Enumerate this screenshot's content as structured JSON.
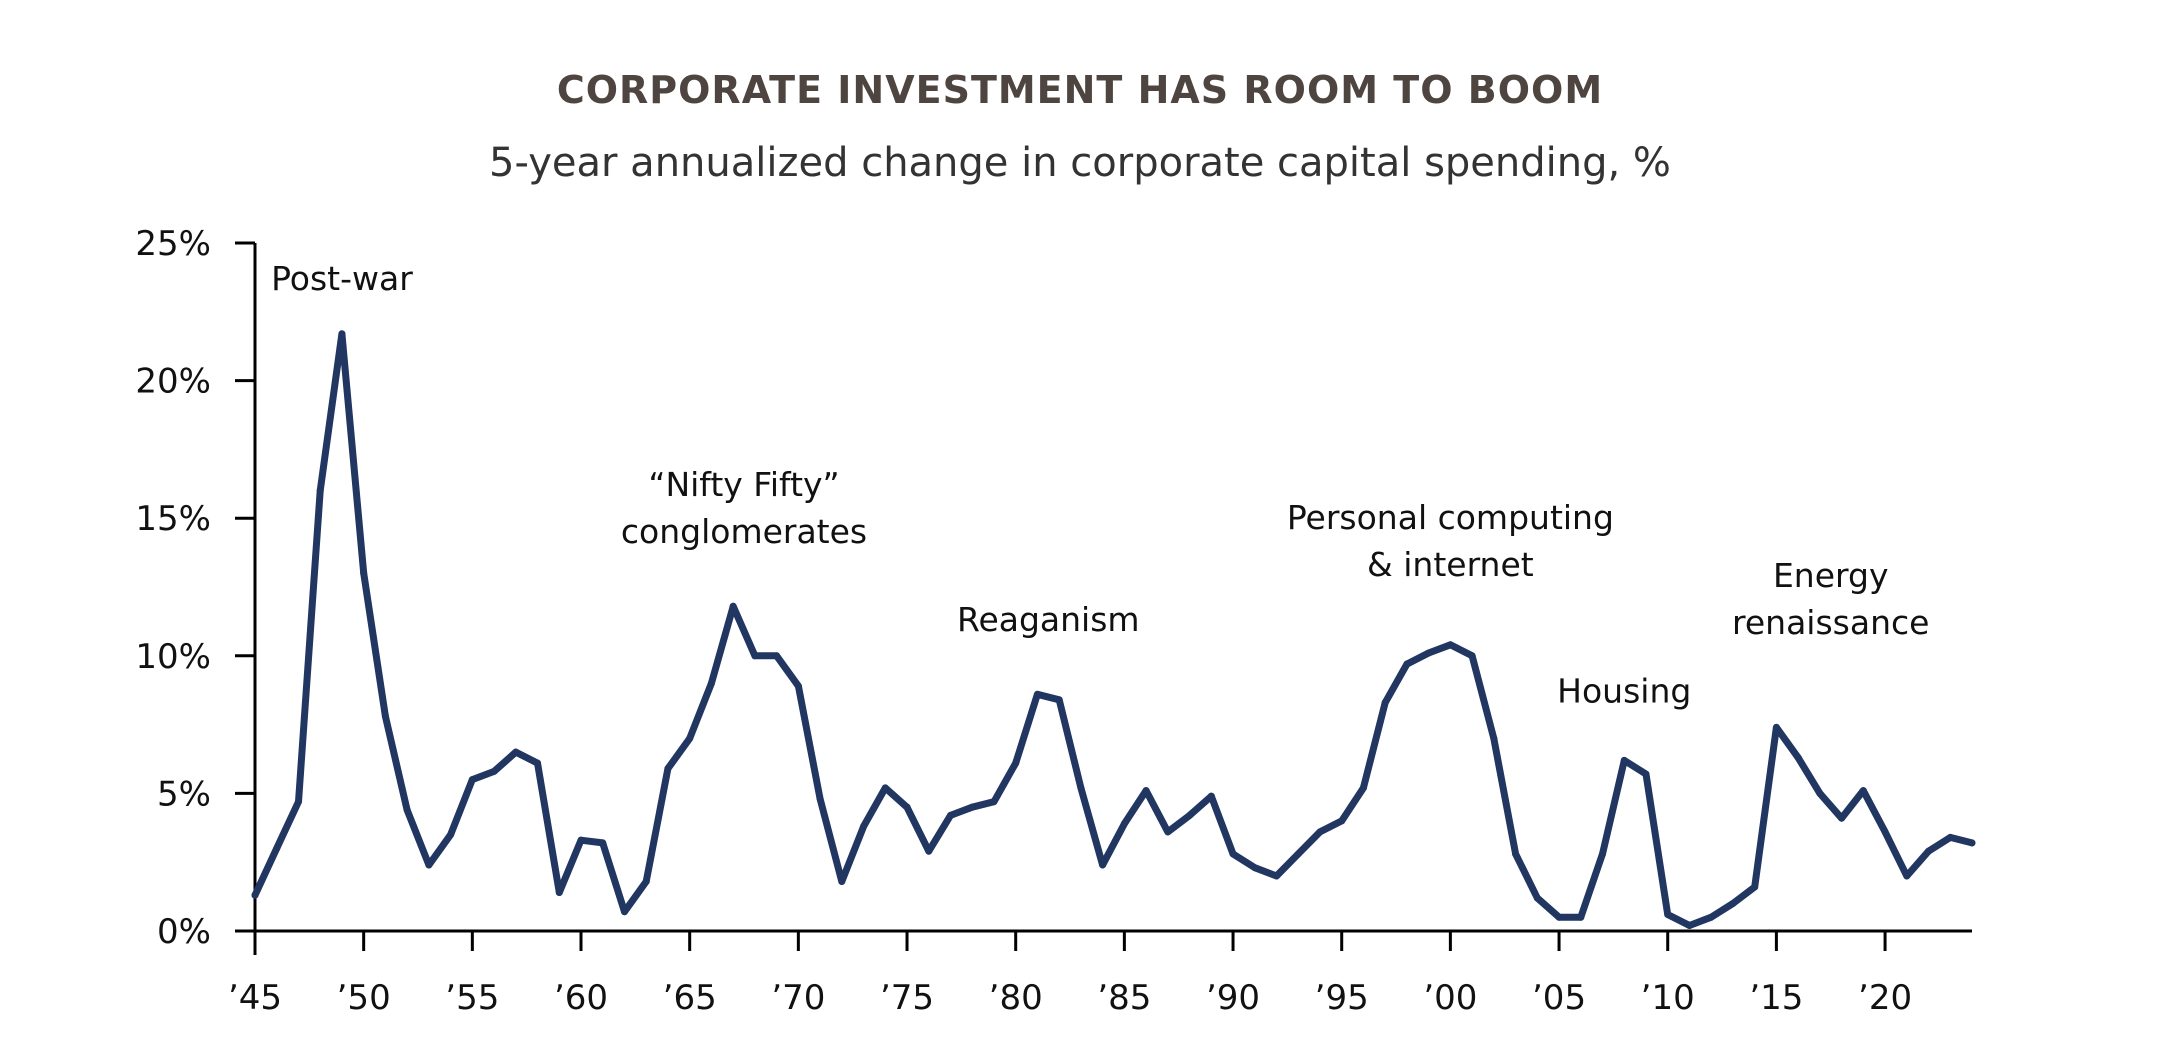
{
  "chart_data": {
    "type": "line",
    "title": "CORPORATE INVESTMENT HAS ROOM TO BOOM",
    "subtitle": "5-year annualized change in corporate capital spending, %",
    "xlabel": "",
    "ylabel": "",
    "xlim": [
      1945,
      2024
    ],
    "ylim": [
      0,
      25
    ],
    "grid": false,
    "legend": "none",
    "line_color": "#213661",
    "y_ticks": [
      {
        "value": 0,
        "label": "0%"
      },
      {
        "value": 5,
        "label": "5%"
      },
      {
        "value": 10,
        "label": "10%"
      },
      {
        "value": 15,
        "label": "15%"
      },
      {
        "value": 20,
        "label": "20%"
      },
      {
        "value": 25,
        "label": "25%"
      }
    ],
    "x_ticks": [
      {
        "value": 1945,
        "label": "’45"
      },
      {
        "value": 1950,
        "label": "’50"
      },
      {
        "value": 1955,
        "label": "’55"
      },
      {
        "value": 1960,
        "label": "’60"
      },
      {
        "value": 1965,
        "label": "’65"
      },
      {
        "value": 1970,
        "label": "’70"
      },
      {
        "value": 1975,
        "label": "’75"
      },
      {
        "value": 1980,
        "label": "’80"
      },
      {
        "value": 1985,
        "label": "’85"
      },
      {
        "value": 1990,
        "label": "’90"
      },
      {
        "value": 1995,
        "label": "’95"
      },
      {
        "value": 2000,
        "label": "’00"
      },
      {
        "value": 2005,
        "label": "’05"
      },
      {
        "value": 2010,
        "label": "’10"
      },
      {
        "value": 2015,
        "label": "’15"
      },
      {
        "value": 2020,
        "label": "’20"
      }
    ],
    "series": [
      {
        "x": [
          1945,
          1946,
          1947,
          1948,
          1949,
          1950,
          1951,
          1952,
          1953,
          1954,
          1955,
          1956,
          1957,
          1958,
          1959,
          1960,
          1961,
          1962,
          1963,
          1964,
          1965,
          1966,
          1967,
          1968,
          1969,
          1970,
          1971,
          1972,
          1973,
          1974,
          1975,
          1976,
          1977,
          1978,
          1979,
          1980,
          1981,
          1982,
          1983,
          1984,
          1985,
          1986,
          1987,
          1988,
          1989,
          1990,
          1991,
          1992,
          1993,
          1994,
          1995,
          1996,
          1997,
          1998,
          1999,
          2000,
          2001,
          2002,
          2003,
          2004,
          2005,
          2006,
          2007,
          2008,
          2009,
          2010,
          2011,
          2012,
          2013,
          2014,
          2015,
          2016,
          2017,
          2018,
          2019,
          2020,
          2021,
          2022,
          2023,
          2024
        ],
        "y": [
          1.3,
          3.0,
          4.7,
          16.0,
          21.7,
          13.0,
          7.8,
          4.4,
          2.4,
          3.5,
          5.5,
          5.8,
          6.5,
          6.1,
          1.4,
          3.3,
          3.2,
          0.7,
          1.8,
          5.9,
          7.0,
          9.0,
          11.8,
          10.0,
          10.0,
          8.9,
          4.8,
          1.8,
          3.8,
          5.2,
          4.5,
          2.9,
          4.2,
          4.5,
          4.7,
          6.1,
          8.6,
          8.4,
          5.2,
          2.4,
          3.9,
          5.1,
          3.6,
          4.2,
          4.9,
          2.8,
          2.3,
          2.0,
          2.8,
          3.6,
          4.0,
          5.2,
          8.3,
          9.7,
          10.1,
          10.4,
          10.0,
          7.0,
          2.8,
          1.2,
          0.5,
          0.5,
          2.8,
          6.2,
          5.7,
          0.6,
          0.2,
          0.5,
          1.0,
          1.6,
          7.4,
          6.3,
          5.0,
          4.1,
          5.1,
          3.6,
          2.0,
          2.9,
          3.4,
          3.2
        ]
      }
    ],
    "annotations": [
      {
        "lines": [
          "Post-war"
        ],
        "x": 1949,
        "y": 23.3
      },
      {
        "lines": [
          "“Nifty Fifty”",
          "conglomerates"
        ],
        "x": 1967.5,
        "y": 15.8
      },
      {
        "lines": [
          "Reaganism"
        ],
        "x": 1981.5,
        "y": 10.9
      },
      {
        "lines": [
          "Personal computing",
          "& internet"
        ],
        "x": 2000,
        "y": 14.6
      },
      {
        "lines": [
          "Housing"
        ],
        "x": 2008,
        "y": 8.3
      },
      {
        "lines": [
          "Energy",
          "renaissance"
        ],
        "x": 2017.5,
        "y": 12.5
      }
    ]
  }
}
